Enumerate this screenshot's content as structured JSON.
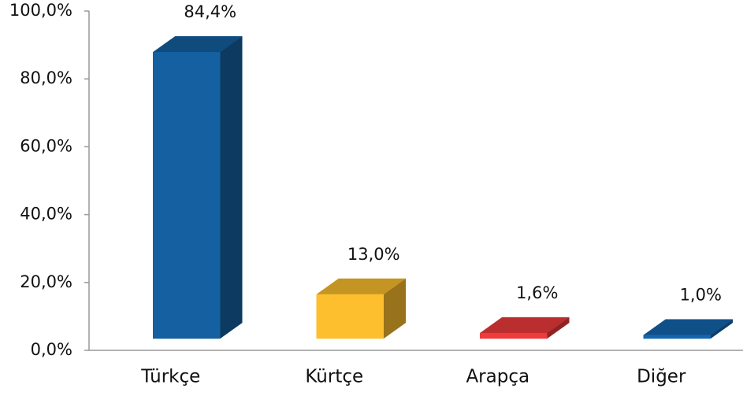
{
  "chart_data": {
    "type": "bar3d",
    "categories": [
      "Türkçe",
      "Kürtçe",
      "Arapça",
      "Diğer"
    ],
    "values": [
      84.4,
      13.0,
      1.6,
      1.0
    ],
    "value_labels": [
      "84,4%",
      "13,0%",
      "1,6%",
      "1,0%"
    ],
    "colors": [
      "#1560a0",
      "#fdbf2d",
      "#ee3b3c",
      "#1566b0"
    ],
    "ylim": [
      0,
      100
    ],
    "yticks": [
      {
        "value": 0,
        "label": "0,0%"
      },
      {
        "value": 20,
        "label": "20,0%"
      },
      {
        "value": 40,
        "label": "40,0%"
      },
      {
        "value": 60,
        "label": "60,0%"
      },
      {
        "value": 80,
        "label": "80,0%"
      },
      {
        "value": 100,
        "label": "100,0%"
      }
    ],
    "grid": false
  }
}
